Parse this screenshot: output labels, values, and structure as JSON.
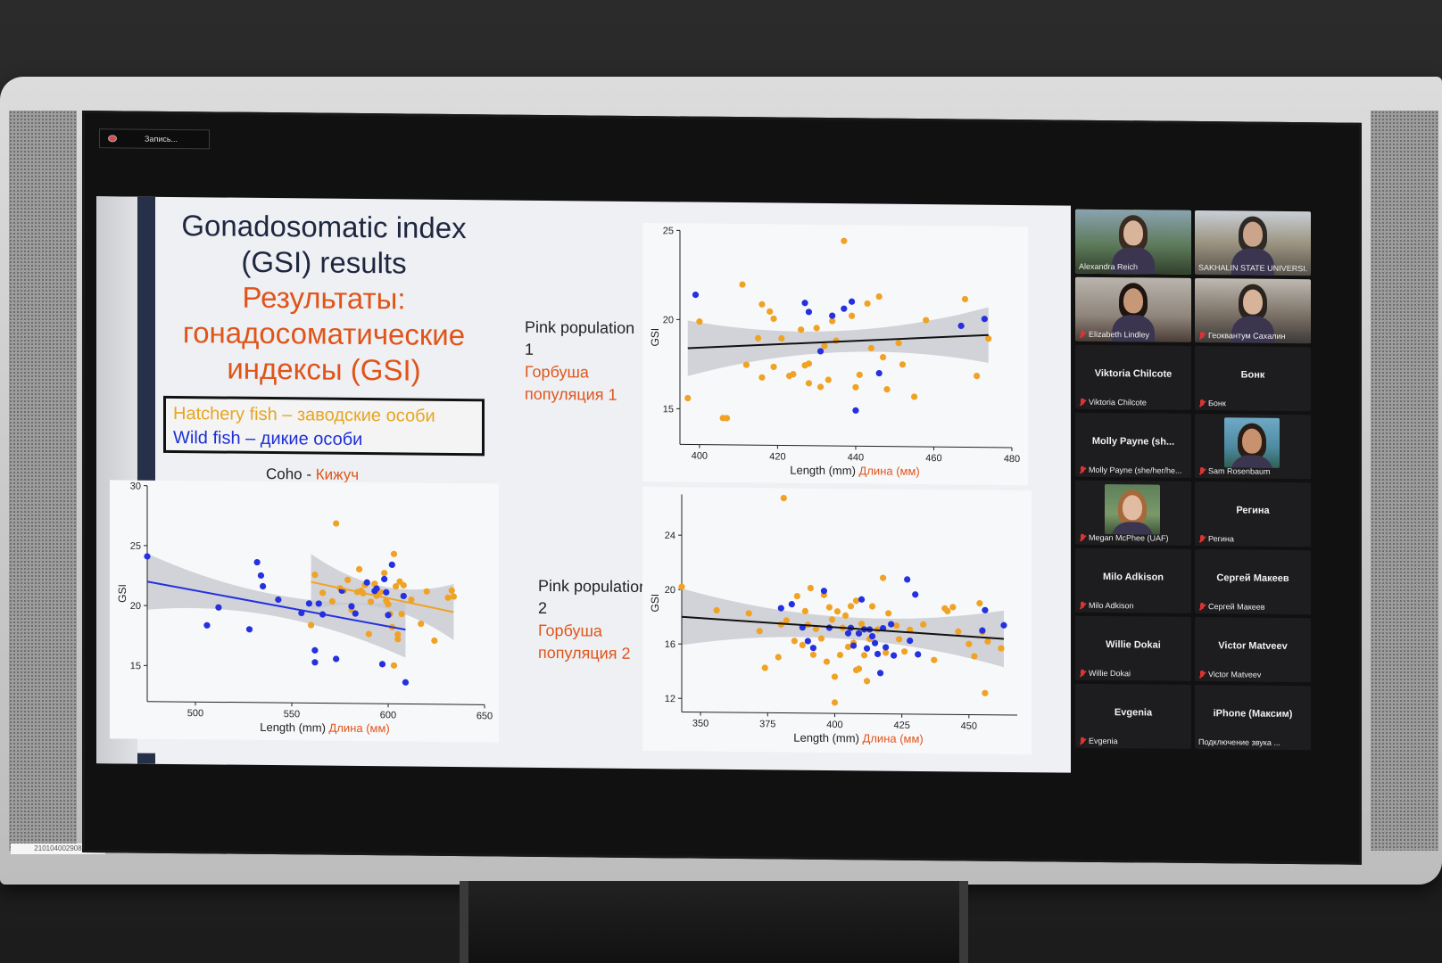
{
  "recording": {
    "label": "Запись..."
  },
  "asset_tag": "210104002908",
  "slide": {
    "title_en": "Gonadosomatic index (GSI) results",
    "title_ru": "Результаты: гонадосоматические индексы (GSI)",
    "legend": {
      "hatchery": "Hatchery fish – заводские особи",
      "wild": "Wild fish – дикие особи"
    },
    "colors": {
      "hatchery": "#f0a225",
      "wild": "#2530e0",
      "fit_overall": "#111111",
      "ci_band": "#c4c7cc",
      "title_ru": "#e0541a"
    },
    "coho_title_en": "Coho - ",
    "coho_title_ru": "Кижуч",
    "pink1_label_en": "Pink population 1",
    "pink1_label_ru": "Горбуша популяция 1",
    "pink2_label_en": "Pink population 2",
    "pink2_label_ru": "Горбуша популяция 2"
  },
  "chart_data": [
    {
      "id": "pink1",
      "type": "scatter",
      "xlabel": "Length (mm)",
      "xlabel_ru": "Длина (мм)",
      "ylabel": "GSI",
      "xlim": [
        395,
        480
      ],
      "ylim": [
        13,
        25
      ],
      "xticks": [
        400,
        420,
        440,
        460,
        480
      ],
      "yticks": [
        15,
        20,
        25
      ],
      "hatchery": [
        [
          397,
          15.6
        ],
        [
          400,
          19.9
        ],
        [
          406,
          14.5
        ],
        [
          407,
          14.5
        ],
        [
          411,
          22
        ],
        [
          412,
          17.5
        ],
        [
          415,
          19
        ],
        [
          416,
          20.9
        ],
        [
          416,
          16.8
        ],
        [
          418,
          20.5
        ],
        [
          419,
          20.1
        ],
        [
          419,
          17.4
        ],
        [
          421,
          19
        ],
        [
          423,
          16.9
        ],
        [
          424,
          17
        ],
        [
          426,
          19.5
        ],
        [
          427,
          17.5
        ],
        [
          428,
          16.5
        ],
        [
          428,
          17.6
        ],
        [
          430,
          19.6
        ],
        [
          431,
          16.3
        ],
        [
          432,
          18.6
        ],
        [
          433,
          16.7
        ],
        [
          434,
          20
        ],
        [
          435,
          18.9
        ],
        [
          437,
          24.5
        ],
        [
          439,
          20.3
        ],
        [
          440,
          16.3
        ],
        [
          441,
          17
        ],
        [
          443,
          21
        ],
        [
          444,
          18.5
        ],
        [
          446,
          21.4
        ],
        [
          447,
          18
        ],
        [
          448,
          16.2
        ],
        [
          451,
          18.8
        ],
        [
          452,
          17.6
        ],
        [
          455,
          15.8
        ],
        [
          458,
          20.1
        ],
        [
          468,
          21.3
        ],
        [
          471,
          17
        ],
        [
          474,
          19.1
        ]
      ],
      "wild": [
        [
          399,
          21.4
        ],
        [
          427,
          21
        ],
        [
          428,
          20.5
        ],
        [
          431,
          18.3
        ],
        [
          434,
          20.3
        ],
        [
          437,
          20.7
        ],
        [
          439,
          21.1
        ],
        [
          440,
          15
        ],
        [
          446,
          17.1
        ],
        [
          467,
          19.8
        ],
        [
          473,
          20.2
        ]
      ],
      "fit_overall": [
        [
          397,
          18.4
        ],
        [
          474,
          19.3
        ]
      ]
    },
    {
      "id": "coho",
      "type": "scatter",
      "xlabel": "Length (mm)",
      "xlabel_ru": "Длина (мм)",
      "ylabel": "GSI",
      "xlim": [
        475,
        650
      ],
      "ylim": [
        12,
        30
      ],
      "xticks": [
        500,
        550,
        600,
        650
      ],
      "yticks": [
        15,
        20,
        25,
        30
      ],
      "hatchery": [
        [
          560,
          18.5
        ],
        [
          562,
          22.7
        ],
        [
          566,
          21.2
        ],
        [
          571,
          20.5
        ],
        [
          573,
          27
        ],
        [
          575,
          21.6
        ],
        [
          577,
          21.4
        ],
        [
          579,
          22.3
        ],
        [
          581,
          19.8
        ],
        [
          584,
          21.3
        ],
        [
          585,
          23.2
        ],
        [
          586,
          21.4
        ],
        [
          587,
          21.2
        ],
        [
          588,
          21.9
        ],
        [
          590,
          17.8
        ],
        [
          591,
          20.5
        ],
        [
          593,
          22
        ],
        [
          594,
          21
        ],
        [
          596,
          21.3
        ],
        [
          598,
          22.9
        ],
        [
          599,
          20.6
        ],
        [
          600,
          20.3
        ],
        [
          601,
          19.5
        ],
        [
          602,
          18.4
        ],
        [
          603,
          15.2
        ],
        [
          603,
          24.5
        ],
        [
          604,
          21.8
        ],
        [
          605,
          17.8
        ],
        [
          605,
          17.4
        ],
        [
          606,
          22.2
        ],
        [
          607,
          19.5
        ],
        [
          608,
          21.9
        ],
        [
          612,
          20.7
        ],
        [
          617,
          18.7
        ],
        [
          620,
          21.4
        ],
        [
          624,
          17.3
        ],
        [
          631,
          20.9
        ],
        [
          633,
          21.5
        ],
        [
          634,
          21
        ]
      ],
      "wild": [
        [
          475,
          24.1
        ],
        [
          506,
          18.4
        ],
        [
          512,
          19.9
        ],
        [
          528,
          18.1
        ],
        [
          532,
          23.7
        ],
        [
          534,
          22.6
        ],
        [
          535,
          21.7
        ],
        [
          543,
          20.6
        ],
        [
          555,
          19.5
        ],
        [
          559,
          20.3
        ],
        [
          562,
          16.4
        ],
        [
          562,
          15.4
        ],
        [
          564,
          20.3
        ],
        [
          566,
          19.4
        ],
        [
          573,
          15.7
        ],
        [
          576,
          21.4
        ],
        [
          581,
          20.1
        ],
        [
          583,
          19.5
        ],
        [
          589,
          22.1
        ],
        [
          593,
          21.4
        ],
        [
          594,
          21.6
        ],
        [
          597,
          15.3
        ],
        [
          598,
          22.4
        ],
        [
          599,
          21.3
        ],
        [
          600,
          19.4
        ],
        [
          602,
          23.6
        ],
        [
          608,
          21
        ],
        [
          609,
          13.8
        ]
      ],
      "fit_hatchery": [
        [
          560,
          22.1
        ],
        [
          634,
          19.7
        ]
      ],
      "fit_wild": [
        [
          475,
          22
        ],
        [
          609,
          18.2
        ]
      ]
    },
    {
      "id": "pink2",
      "type": "scatter",
      "xlabel": "Length (mm)",
      "xlabel_ru": "Длина (мм)",
      "ylabel": "GSI",
      "xlim": [
        343,
        468
      ],
      "ylim": [
        11,
        27
      ],
      "xticks": [
        350,
        375,
        400,
        425,
        450
      ],
      "yticks": [
        12,
        16,
        20,
        24
      ],
      "hatchery": [
        [
          343,
          20.2
        ],
        [
          356,
          18.5
        ],
        [
          368,
          18.3
        ],
        [
          372,
          17
        ],
        [
          374,
          14.3
        ],
        [
          379,
          15.1
        ],
        [
          380,
          17.5
        ],
        [
          381,
          26.8
        ],
        [
          382,
          17.8
        ],
        [
          385,
          16.3
        ],
        [
          386,
          19.6
        ],
        [
          388,
          16
        ],
        [
          389,
          18.5
        ],
        [
          390,
          17.5
        ],
        [
          391,
          20.2
        ],
        [
          392,
          15.3
        ],
        [
          393,
          17.2
        ],
        [
          395,
          16.5
        ],
        [
          396,
          19.7
        ],
        [
          397,
          14.8
        ],
        [
          398,
          18.8
        ],
        [
          399,
          17.9
        ],
        [
          400,
          13.7
        ],
        [
          400,
          11.8
        ],
        [
          401,
          18.5
        ],
        [
          402,
          15.3
        ],
        [
          403,
          17.3
        ],
        [
          404,
          18.2
        ],
        [
          405,
          15.9
        ],
        [
          406,
          18.9
        ],
        [
          407,
          16.2
        ],
        [
          408,
          19.3
        ],
        [
          408,
          14.2
        ],
        [
          409,
          14.3
        ],
        [
          410,
          17.6
        ],
        [
          411,
          15.3
        ],
        [
          412,
          13.4
        ],
        [
          413,
          16.5
        ],
        [
          414,
          18.9
        ],
        [
          416,
          17.2
        ],
        [
          418,
          21
        ],
        [
          419,
          15.5
        ],
        [
          420,
          18.4
        ],
        [
          423,
          17.5
        ],
        [
          424,
          16.5
        ],
        [
          426,
          15.6
        ],
        [
          428,
          17.2
        ],
        [
          433,
          17.6
        ],
        [
          437,
          15
        ],
        [
          441,
          18.8
        ],
        [
          442,
          18.6
        ],
        [
          444,
          18.9
        ],
        [
          446,
          17.1
        ],
        [
          450,
          16.2
        ],
        [
          452,
          15.3
        ],
        [
          454,
          19.2
        ],
        [
          455,
          17.1
        ],
        [
          456,
          12.6
        ],
        [
          457,
          16.4
        ],
        [
          462,
          15.9
        ]
      ],
      "wild": [
        [
          380,
          18.7
        ],
        [
          384,
          19
        ],
        [
          388,
          17.3
        ],
        [
          390,
          16.3
        ],
        [
          392,
          15.8
        ],
        [
          396,
          20
        ],
        [
          398,
          17.3
        ],
        [
          405,
          16.9
        ],
        [
          406,
          17.3
        ],
        [
          407,
          16
        ],
        [
          409,
          16.9
        ],
        [
          410,
          19.4
        ],
        [
          411,
          17.2
        ],
        [
          412,
          15.8
        ],
        [
          413,
          17.2
        ],
        [
          414,
          16.7
        ],
        [
          415,
          16.2
        ],
        [
          416,
          15.4
        ],
        [
          417,
          14
        ],
        [
          418,
          17.3
        ],
        [
          419,
          15.9
        ],
        [
          421,
          17.6
        ],
        [
          422,
          15.3
        ],
        [
          427,
          20.9
        ],
        [
          428,
          16.4
        ],
        [
          430,
          19.8
        ],
        [
          431,
          15.4
        ],
        [
          455,
          17.2
        ],
        [
          456,
          18.7
        ],
        [
          463,
          17.6
        ]
      ],
      "fit_overall": [
        [
          343,
          18
        ],
        [
          463,
          16.6
        ]
      ]
    }
  ],
  "participants": [
    {
      "name": "Alexandra Reich",
      "display": "",
      "video": true,
      "active": true,
      "muted": false
    },
    {
      "name": "SAKHALIN STATE UNIVERSI...",
      "display": "",
      "video": true,
      "active": false,
      "muted": false
    },
    {
      "name": "Elizabeth Lindley",
      "display": "",
      "video": true,
      "active": false,
      "muted": true
    },
    {
      "name": "Геоквантум Сахалин",
      "display": "",
      "video": true,
      "active": false,
      "muted": true
    },
    {
      "name": "Viktoria Chilcote",
      "display": "Viktoria Chilcote",
      "video": false,
      "active": false,
      "muted": true
    },
    {
      "name": "Бонк",
      "display": "Бонк",
      "video": false,
      "active": false,
      "muted": true
    },
    {
      "name": "Molly Payne (she/her/he...",
      "display": "Molly Payne (sh...",
      "video": false,
      "active": false,
      "muted": true
    },
    {
      "name": "Sam Rosenbaum",
      "display": "",
      "video": true,
      "active": false,
      "muted": true
    },
    {
      "name": "Megan McPhee (UAF)",
      "display": "",
      "video": true,
      "active": false,
      "muted": true
    },
    {
      "name": "Регина",
      "display": "Регина",
      "video": false,
      "active": false,
      "muted": true
    },
    {
      "name": "Milo Adkison",
      "display": "Milo Adkison",
      "video": false,
      "active": false,
      "muted": true
    },
    {
      "name": "Сергей Макеев",
      "display": "Сергей Макеев",
      "video": false,
      "active": false,
      "muted": true
    },
    {
      "name": "Willie Dokai",
      "display": "Willie Dokai",
      "video": false,
      "active": false,
      "muted": true
    },
    {
      "name": "Victor Matveev",
      "display": "Victor Matveev",
      "video": false,
      "active": false,
      "muted": true
    },
    {
      "name": "Evgenia",
      "display": "Evgenia",
      "video": false,
      "active": false,
      "muted": true
    },
    {
      "name": "Подключение звука ...",
      "display": "iPhone (Максим)",
      "video": false,
      "active": false,
      "muted": false
    }
  ]
}
